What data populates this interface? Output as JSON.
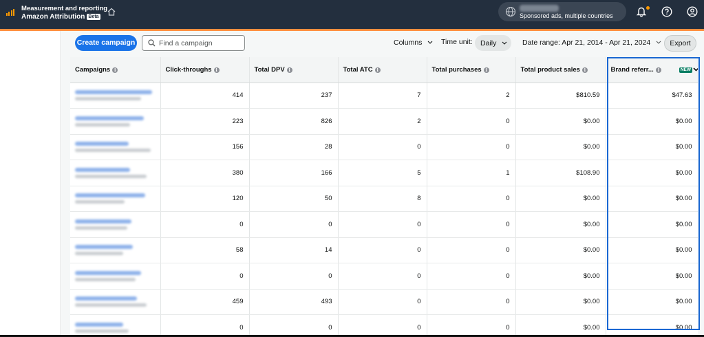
{
  "app": {
    "title_line1": "Measurement and reporting",
    "title_line2": "Amazon Attribution",
    "beta_badge": "Beta",
    "account_subtitle": "Sponsored ads, multiple countries"
  },
  "icons": [
    "bar-chart-logo-icon",
    "home-icon",
    "globe-icon",
    "bell-icon",
    "help-icon",
    "user-icon",
    "search-icon",
    "chevron-down-icon",
    "info-icon"
  ],
  "colors": {
    "topbar": "#232f3e",
    "accent_orange": "#ff8f3f",
    "primary_blue": "#1a73e8",
    "highlight_border": "#1967d2",
    "new_badge": "#067d62"
  },
  "toolbar": {
    "create_label": "Create campaign",
    "search_placeholder": "Find a campaign",
    "columns_label": "Columns",
    "timeunit_label": "Time unit:",
    "timeunit_value": "Daily",
    "daterange_label": "Date range: Apr 21, 2014 - Apr 21, 2024",
    "export_label": "Export"
  },
  "table": {
    "headers": [
      "Campaigns",
      "Click-throughs",
      "Total DPV",
      "Total ATC",
      "Total purchases",
      "Total product sales",
      "Brand referr..."
    ],
    "new_badge": "NEW",
    "rows": [
      {
        "clicks": "414",
        "dpv": "237",
        "atc": "7",
        "purchases": "2",
        "sales": "$810.59",
        "brand": "$47.63"
      },
      {
        "clicks": "223",
        "dpv": "826",
        "atc": "2",
        "purchases": "0",
        "sales": "$0.00",
        "brand": "$0.00"
      },
      {
        "clicks": "156",
        "dpv": "28",
        "atc": "0",
        "purchases": "0",
        "sales": "$0.00",
        "brand": "$0.00"
      },
      {
        "clicks": "380",
        "dpv": "166",
        "atc": "5",
        "purchases": "1",
        "sales": "$108.90",
        "brand": "$0.00"
      },
      {
        "clicks": "120",
        "dpv": "50",
        "atc": "8",
        "purchases": "0",
        "sales": "$0.00",
        "brand": "$0.00"
      },
      {
        "clicks": "0",
        "dpv": "0",
        "atc": "0",
        "purchases": "0",
        "sales": "$0.00",
        "brand": "$0.00"
      },
      {
        "clicks": "58",
        "dpv": "14",
        "atc": "0",
        "purchases": "0",
        "sales": "$0.00",
        "brand": "$0.00"
      },
      {
        "clicks": "0",
        "dpv": "0",
        "atc": "0",
        "purchases": "0",
        "sales": "$0.00",
        "brand": "$0.00"
      },
      {
        "clicks": "459",
        "dpv": "493",
        "atc": "0",
        "purchases": "0",
        "sales": "$0.00",
        "brand": "$0.00"
      },
      {
        "clicks": "0",
        "dpv": "0",
        "atc": "0",
        "purchases": "0",
        "sales": "$0.00",
        "brand": "$0.00"
      }
    ]
  }
}
